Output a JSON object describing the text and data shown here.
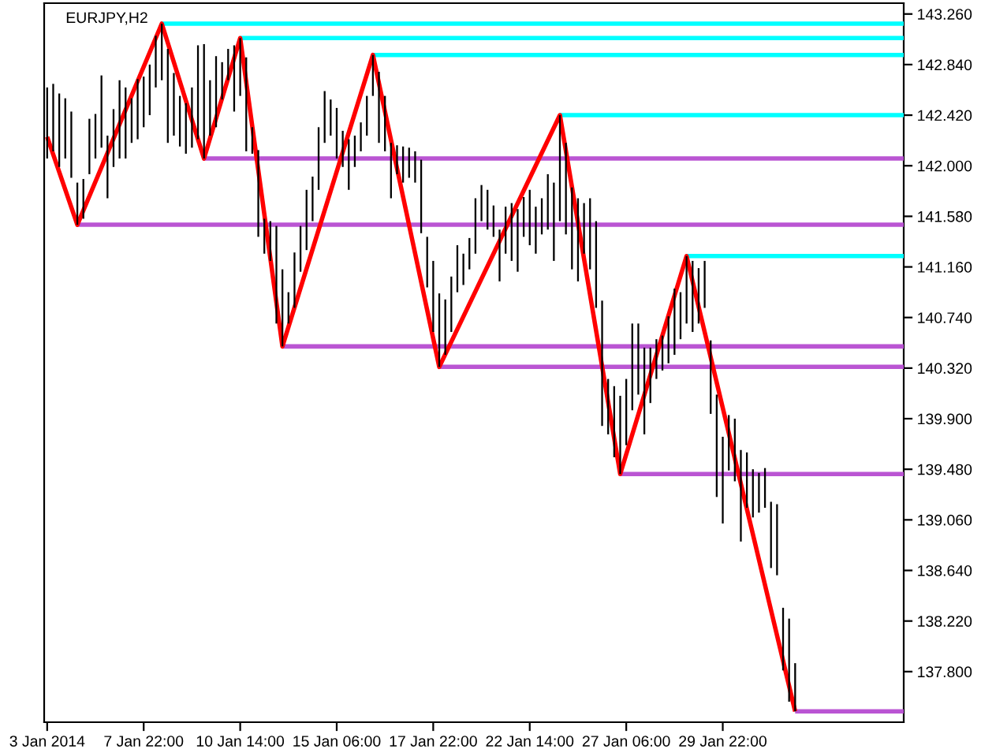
{
  "chart_data": {
    "type": "bar",
    "title": "EURJPY,H2",
    "categories": [
      "3 Jan 2014",
      null,
      null,
      null,
      null,
      null,
      null,
      null,
      null,
      null,
      null,
      null,
      null,
      null,
      null,
      null,
      "7 Jan 22:00",
      null,
      null,
      null,
      null,
      null,
      null,
      null,
      null,
      null,
      null,
      null,
      null,
      null,
      null,
      null,
      "10 Jan 14:00",
      null,
      null,
      null,
      null,
      null,
      null,
      null,
      null,
      null,
      null,
      null,
      null,
      null,
      null,
      null,
      "15 Jan 06:00",
      null,
      null,
      null,
      null,
      null,
      null,
      null,
      null,
      null,
      null,
      null,
      null,
      null,
      null,
      null,
      "17 Jan 22:00",
      null,
      null,
      null,
      null,
      null,
      null,
      null,
      null,
      null,
      null,
      null,
      null,
      null,
      null,
      null,
      "22 Jan 14:00",
      null,
      null,
      null,
      null,
      null,
      null,
      null,
      null,
      null,
      null,
      null,
      null,
      null,
      null,
      null,
      "27 Jan 06:00",
      null,
      null,
      null,
      null,
      null,
      null,
      null,
      null,
      null,
      null,
      null,
      null,
      null,
      null,
      null,
      "29 Jan 22:00",
      null,
      null,
      null,
      null,
      null,
      null,
      null,
      null,
      null,
      null,
      null,
      null,
      null,
      null,
      null,
      null,
      null,
      null,
      null,
      null,
      null,
      null,
      null,
      null,
      null,
      null,
      null,
      null,
      null,
      null
    ],
    "ylim": [
      137.38,
      143.35
    ],
    "yticks": [
      {
        "value": 143.26,
        "label": "143.260"
      },
      {
        "value": 142.84,
        "label": "142.840"
      },
      {
        "value": 142.42,
        "label": "142.420"
      },
      {
        "value": 142.0,
        "label": "142.000"
      },
      {
        "value": 141.58,
        "label": "141.580"
      },
      {
        "value": 141.16,
        "label": "141.160"
      },
      {
        "value": 140.74,
        "label": "140.740"
      },
      {
        "value": 140.32,
        "label": "140.320"
      },
      {
        "value": 139.9,
        "label": "139.900"
      },
      {
        "value": 139.48,
        "label": "139.480"
      },
      {
        "value": 139.06,
        "label": "139.060"
      },
      {
        "value": 138.64,
        "label": "138.640"
      },
      {
        "value": 138.22,
        "label": "138.220"
      },
      {
        "value": 137.8,
        "label": "137.800"
      }
    ],
    "series": [
      {
        "color": "#000000",
        "base": [
          142.06,
          142.12,
          141.99,
          142.06,
          141.9,
          141.51,
          141.56,
          141.93,
          142.06,
          142.15,
          141.73,
          141.99,
          142.06,
          142.06,
          142.19,
          142.22,
          142.32,
          142.42,
          142.65,
          142.71,
          142.19,
          142.25,
          142.16,
          142.1,
          142.15,
          142.22,
          142.06,
          142.25,
          142.32,
          142.55,
          142.71,
          142.45,
          142.58,
          142.12,
          142.1,
          141.41,
          141.27,
          141.21,
          140.69,
          140.5,
          140.69,
          140.82,
          141.12,
          141.3,
          141.54,
          141.8,
          142.19,
          142.25,
          142.06,
          141.99,
          141.8,
          141.99,
          142.12,
          142.25,
          142.58,
          142.19,
          142.12,
          141.73,
          141.93,
          141.86,
          141.9,
          141.86,
          141.44,
          140.99,
          140.62,
          140.33,
          140.43,
          140.62,
          140.95,
          141.01,
          141.14,
          141.27,
          141.54,
          141.47,
          141.41,
          141.04,
          141.27,
          141.21,
          141.12,
          141.41,
          141.34,
          141.27,
          141.43,
          141.47,
          141.21,
          141.54,
          141.43,
          141.14,
          141.04,
          141.27,
          141.14,
          140.82,
          139.84,
          139.77,
          139.58,
          139.44,
          139.68,
          139.97,
          140.1,
          139.77,
          140.03,
          140.23,
          140.3,
          140.36,
          140.43,
          140.56,
          140.69,
          140.62,
          140.69,
          140.82,
          139.94,
          139.25,
          139.03,
          139.47,
          139.38,
          138.88,
          139.16,
          139.08,
          139.12,
          139.16,
          138.66,
          138.6,
          137.81,
          137.55,
          137.47,
          null,
          null,
          null,
          null,
          null,
          null,
          null,
          null,
          null,
          null,
          null,
          null,
          null,
          null,
          null,
          null,
          null,
          null
        ],
        "values": [
          0.59,
          0.56,
          0.61,
          0.5,
          0.55,
          0.35,
          0.33,
          0.46,
          0.37,
          0.6,
          0.52,
          0.48,
          0.65,
          0.59,
          0.37,
          0.5,
          0.42,
          0.42,
          0.43,
          0.47,
          0.78,
          0.52,
          0.42,
          0.42,
          0.5,
          0.78,
          0.95,
          0.46,
          0.59,
          0.31,
          0.26,
          0.55,
          0.48,
          0.78,
          0.22,
          0.72,
          0.29,
          0.33,
          0.81,
          0.64,
          0.26,
          0.46,
          0.38,
          0.5,
          0.37,
          0.52,
          0.43,
          0.3,
          0.42,
          0.3,
          0.42,
          0.26,
          0.24,
          0.33,
          0.34,
          0.59,
          0.46,
          0.46,
          0.24,
          0.3,
          0.25,
          0.26,
          0.61,
          0.42,
          0.59,
          0.61,
          0.46,
          0.46,
          0.39,
          0.26,
          0.26,
          0.46,
          0.3,
          0.33,
          0.26,
          0.43,
          0.39,
          0.48,
          0.52,
          0.33,
          0.46,
          0.39,
          0.3,
          0.46,
          0.65,
          0.88,
          0.76,
          0.68,
          0.69,
          0.42,
          0.59,
          0.72,
          1.04,
          0.46,
          0.59,
          0.65,
          0.55,
          0.72,
          0.59,
          0.72,
          0.46,
          0.33,
          0.29,
          0.39,
          0.55,
          0.39,
          0.56,
          0.59,
          0.46,
          0.39,
          0.61,
          0.85,
          0.72,
          0.46,
          0.52,
          0.76,
          0.46,
          0.4,
          0.33,
          0.33,
          0.55,
          0.59,
          0.52,
          0.69,
          0.4,
          null,
          null,
          null,
          null,
          null,
          null,
          null,
          null,
          null,
          null,
          null,
          null,
          null,
          null,
          null,
          null,
          null,
          null
        ]
      },
      {
        "type": "line",
        "color": "#00ffff",
        "values": [
          null,
          null,
          null,
          null,
          null,
          null,
          null,
          null,
          null,
          null,
          null,
          null,
          null,
          null,
          null,
          null,
          null,
          null,
          null,
          143.18,
          143.18,
          143.18,
          143.18,
          143.18,
          143.18,
          143.18,
          143.18,
          143.18,
          143.18,
          143.18,
          143.18,
          143.18,
          143.18,
          143.18,
          143.18,
          143.18,
          143.18,
          143.18,
          143.18,
          143.18,
          143.18,
          143.18,
          143.18,
          143.18,
          143.18,
          143.18,
          143.18,
          143.18,
          143.18,
          143.18,
          143.18,
          143.18,
          143.18,
          143.18,
          143.18,
          143.18,
          143.18,
          143.18,
          143.18,
          143.18,
          143.18,
          143.18,
          143.18,
          143.18,
          143.18,
          143.18,
          143.18,
          143.18,
          143.18,
          143.18,
          143.18,
          143.18,
          143.18,
          143.18,
          143.18,
          143.18,
          143.18,
          143.18,
          143.18,
          143.18,
          143.18,
          143.18,
          143.18,
          143.18,
          143.18,
          143.18,
          143.18,
          143.18,
          143.18,
          143.18,
          143.18,
          143.18,
          143.18,
          143.18,
          143.18,
          143.18,
          143.18,
          143.18,
          143.18,
          143.18,
          143.18,
          143.18,
          143.18,
          143.18,
          143.18,
          143.18,
          143.18,
          143.18,
          143.18,
          143.18,
          143.18,
          143.18,
          143.18,
          143.18,
          143.18,
          143.18,
          143.18,
          143.18,
          143.18,
          143.18,
          143.18,
          143.18,
          143.18,
          143.18,
          143.18,
          143.18,
          143.18,
          143.18,
          143.18,
          143.18,
          143.18,
          143.18,
          143.18,
          143.18,
          143.18,
          143.18,
          143.18,
          143.18,
          143.18,
          143.18,
          143.18,
          143.18,
          143.18
        ]
      },
      {
        "type": "line",
        "color": "#00ffff",
        "values": [
          null,
          null,
          null,
          null,
          null,
          null,
          null,
          null,
          null,
          null,
          null,
          null,
          null,
          null,
          null,
          null,
          null,
          null,
          null,
          null,
          null,
          null,
          null,
          null,
          null,
          null,
          null,
          null,
          null,
          null,
          null,
          null,
          143.06,
          143.06,
          143.06,
          143.06,
          143.06,
          143.06,
          143.06,
          143.06,
          143.06,
          143.06,
          143.06,
          143.06,
          143.06,
          143.06,
          143.06,
          143.06,
          143.06,
          143.06,
          143.06,
          143.06,
          143.06,
          143.06,
          143.06,
          143.06,
          143.06,
          143.06,
          143.06,
          143.06,
          143.06,
          143.06,
          143.06,
          143.06,
          143.06,
          143.06,
          143.06,
          143.06,
          143.06,
          143.06,
          143.06,
          143.06,
          143.06,
          143.06,
          143.06,
          143.06,
          143.06,
          143.06,
          143.06,
          143.06,
          143.06,
          143.06,
          143.06,
          143.06,
          143.06,
          143.06,
          143.06,
          143.06,
          143.06,
          143.06,
          143.06,
          143.06,
          143.06,
          143.06,
          143.06,
          143.06,
          143.06,
          143.06,
          143.06,
          143.06,
          143.06,
          143.06,
          143.06,
          143.06,
          143.06,
          143.06,
          143.06,
          143.06,
          143.06,
          143.06,
          143.06,
          143.06,
          143.06,
          143.06,
          143.06,
          143.06,
          143.06,
          143.06,
          143.06,
          143.06,
          143.06,
          143.06,
          143.06,
          143.06,
          143.06,
          143.06,
          143.06,
          143.06,
          143.06,
          143.06,
          143.06,
          143.06,
          143.06,
          143.06,
          143.06,
          143.06,
          143.06,
          143.06,
          143.06,
          143.06,
          143.06,
          143.06,
          143.06
        ]
      },
      {
        "type": "line",
        "color": "#00ffff",
        "values": [
          null,
          null,
          null,
          null,
          null,
          null,
          null,
          null,
          null,
          null,
          null,
          null,
          null,
          null,
          null,
          null,
          null,
          null,
          null,
          null,
          null,
          null,
          null,
          null,
          null,
          null,
          null,
          null,
          null,
          null,
          null,
          null,
          null,
          null,
          null,
          null,
          null,
          null,
          null,
          null,
          null,
          null,
          null,
          null,
          null,
          null,
          null,
          null,
          null,
          null,
          null,
          null,
          null,
          null,
          142.92,
          142.92,
          142.92,
          142.92,
          142.92,
          142.92,
          142.92,
          142.92,
          142.92,
          142.92,
          142.92,
          142.92,
          142.92,
          142.92,
          142.92,
          142.92,
          142.92,
          142.92,
          142.92,
          142.92,
          142.92,
          142.92,
          142.92,
          142.92,
          142.92,
          142.92,
          142.92,
          142.92,
          142.92,
          142.92,
          142.92,
          142.92,
          142.92,
          142.92,
          142.92,
          142.92,
          142.92,
          142.92,
          142.92,
          142.92,
          142.92,
          142.92,
          142.92,
          142.92,
          142.92,
          142.92,
          142.92,
          142.92,
          142.92,
          142.92,
          142.92,
          142.92,
          142.92,
          142.92,
          142.92,
          142.92,
          142.92,
          142.92,
          142.92,
          142.92,
          142.92,
          142.92,
          142.92,
          142.92,
          142.92,
          142.92,
          142.92,
          142.92,
          142.92,
          142.92,
          142.92,
          142.92,
          142.92,
          142.92,
          142.92,
          142.92,
          142.92,
          142.92,
          142.92,
          142.92,
          142.92,
          142.92,
          142.92,
          142.92,
          142.92,
          142.92,
          142.92,
          142.92,
          142.92
        ]
      },
      {
        "type": "line",
        "color": "#00ffff",
        "values": [
          null,
          null,
          null,
          null,
          null,
          null,
          null,
          null,
          null,
          null,
          null,
          null,
          null,
          null,
          null,
          null,
          null,
          null,
          null,
          null,
          null,
          null,
          null,
          null,
          null,
          null,
          null,
          null,
          null,
          null,
          null,
          null,
          null,
          null,
          null,
          null,
          null,
          null,
          null,
          null,
          null,
          null,
          null,
          null,
          null,
          null,
          null,
          null,
          null,
          null,
          null,
          null,
          null,
          null,
          null,
          null,
          null,
          null,
          null,
          null,
          null,
          null,
          null,
          null,
          null,
          null,
          null,
          null,
          null,
          null,
          null,
          null,
          null,
          null,
          null,
          null,
          null,
          null,
          null,
          null,
          null,
          null,
          null,
          null,
          null,
          142.42,
          142.42,
          142.42,
          142.42,
          142.42,
          142.42,
          142.42,
          142.42,
          142.42,
          142.42,
          142.42,
          142.42,
          142.42,
          142.42,
          142.42,
          142.42,
          142.42,
          142.42,
          142.42,
          142.42,
          142.42,
          142.42,
          142.42,
          142.42,
          142.42,
          142.42,
          142.42,
          142.42,
          142.42,
          142.42,
          142.42,
          142.42,
          142.42,
          142.42,
          142.42,
          142.42,
          142.42,
          142.42,
          142.42,
          142.42,
          142.42,
          142.42,
          142.42,
          142.42,
          142.42,
          142.42,
          142.42,
          142.42,
          142.42,
          142.42,
          142.42,
          142.42,
          142.42,
          142.42,
          142.42,
          142.42,
          142.42,
          142.42
        ]
      },
      {
        "type": "line",
        "color": "#00ffff",
        "values": [
          null,
          null,
          null,
          null,
          null,
          null,
          null,
          null,
          null,
          null,
          null,
          null,
          null,
          null,
          null,
          null,
          null,
          null,
          null,
          null,
          null,
          null,
          null,
          null,
          null,
          null,
          null,
          null,
          null,
          null,
          null,
          null,
          null,
          null,
          null,
          null,
          null,
          null,
          null,
          null,
          null,
          null,
          null,
          null,
          null,
          null,
          null,
          null,
          null,
          null,
          null,
          null,
          null,
          null,
          null,
          null,
          null,
          null,
          null,
          null,
          null,
          null,
          null,
          null,
          null,
          null,
          null,
          null,
          null,
          null,
          null,
          null,
          null,
          null,
          null,
          null,
          null,
          null,
          null,
          null,
          null,
          null,
          null,
          null,
          null,
          null,
          null,
          null,
          null,
          null,
          null,
          null,
          null,
          null,
          null,
          null,
          null,
          null,
          null,
          null,
          null,
          null,
          null,
          null,
          null,
          null,
          141.25,
          141.25,
          141.25,
          141.25,
          141.25,
          141.25,
          141.25,
          141.25,
          141.25,
          141.25,
          141.25,
          141.25,
          141.25,
          141.25,
          141.25,
          141.25,
          141.25,
          141.25,
          141.25,
          141.25,
          141.25,
          141.25,
          141.25,
          141.25,
          141.25,
          141.25,
          141.25,
          141.25,
          141.25,
          141.25,
          141.25,
          141.25,
          141.25,
          141.25,
          141.25,
          141.25,
          141.25
        ]
      },
      {
        "type": "line",
        "color": "#ba55d3",
        "values": [
          null,
          null,
          null,
          null,
          null,
          141.51,
          141.51,
          141.51,
          141.51,
          141.51,
          141.51,
          141.51,
          141.51,
          141.51,
          141.51,
          141.51,
          141.51,
          141.51,
          141.51,
          141.51,
          141.51,
          141.51,
          141.51,
          141.51,
          141.51,
          141.51,
          141.51,
          141.51,
          141.51,
          141.51,
          141.51,
          141.51,
          141.51,
          141.51,
          141.51,
          141.51,
          141.51,
          141.51,
          141.51,
          141.51,
          141.51,
          141.51,
          141.51,
          141.51,
          141.51,
          141.51,
          141.51,
          141.51,
          141.51,
          141.51,
          141.51,
          141.51,
          141.51,
          141.51,
          141.51,
          141.51,
          141.51,
          141.51,
          141.51,
          141.51,
          141.51,
          141.51,
          141.51,
          141.51,
          141.51,
          141.51,
          141.51,
          141.51,
          141.51,
          141.51,
          141.51,
          141.51,
          141.51,
          141.51,
          141.51,
          141.51,
          141.51,
          141.51,
          141.51,
          141.51,
          141.51,
          141.51,
          141.51,
          141.51,
          141.51,
          141.51,
          141.51,
          141.51,
          141.51,
          141.51,
          141.51,
          141.51,
          141.51,
          141.51,
          141.51,
          141.51,
          141.51,
          141.51,
          141.51,
          141.51,
          141.51,
          141.51,
          141.51,
          141.51,
          141.51,
          141.51,
          141.51,
          141.51,
          141.51,
          141.51,
          141.51,
          141.51,
          141.51,
          141.51,
          141.51,
          141.51,
          141.51,
          141.51,
          141.51,
          141.51,
          141.51,
          141.51,
          141.51,
          141.51,
          141.51,
          141.51,
          141.51,
          141.51,
          141.51,
          141.51,
          141.51,
          141.51,
          141.51,
          141.51,
          141.51,
          141.51,
          141.51,
          141.51,
          141.51,
          141.51,
          141.51,
          141.51,
          141.51
        ]
      },
      {
        "type": "line",
        "color": "#ba55d3",
        "values": [
          null,
          null,
          null,
          null,
          null,
          null,
          null,
          null,
          null,
          null,
          null,
          null,
          null,
          null,
          null,
          null,
          null,
          null,
          null,
          null,
          null,
          null,
          null,
          null,
          null,
          null,
          142.06,
          142.06,
          142.06,
          142.06,
          142.06,
          142.06,
          142.06,
          142.06,
          142.06,
          142.06,
          142.06,
          142.06,
          142.06,
          142.06,
          142.06,
          142.06,
          142.06,
          142.06,
          142.06,
          142.06,
          142.06,
          142.06,
          142.06,
          142.06,
          142.06,
          142.06,
          142.06,
          142.06,
          142.06,
          142.06,
          142.06,
          142.06,
          142.06,
          142.06,
          142.06,
          142.06,
          142.06,
          142.06,
          142.06,
          142.06,
          142.06,
          142.06,
          142.06,
          142.06,
          142.06,
          142.06,
          142.06,
          142.06,
          142.06,
          142.06,
          142.06,
          142.06,
          142.06,
          142.06,
          142.06,
          142.06,
          142.06,
          142.06,
          142.06,
          142.06,
          142.06,
          142.06,
          142.06,
          142.06,
          142.06,
          142.06,
          142.06,
          142.06,
          142.06,
          142.06,
          142.06,
          142.06,
          142.06,
          142.06,
          142.06,
          142.06,
          142.06,
          142.06,
          142.06,
          142.06,
          142.06,
          142.06,
          142.06,
          142.06,
          142.06,
          142.06,
          142.06,
          142.06,
          142.06,
          142.06,
          142.06,
          142.06,
          142.06,
          142.06,
          142.06,
          142.06,
          142.06,
          142.06,
          142.06,
          142.06,
          142.06,
          142.06,
          142.06,
          142.06,
          142.06,
          142.06,
          142.06,
          142.06,
          142.06,
          142.06,
          142.06,
          142.06,
          142.06,
          142.06,
          142.06,
          142.06,
          142.06
        ]
      },
      {
        "type": "line",
        "color": "#ba55d3",
        "values": [
          null,
          null,
          null,
          null,
          null,
          null,
          null,
          null,
          null,
          null,
          null,
          null,
          null,
          null,
          null,
          null,
          null,
          null,
          null,
          null,
          null,
          null,
          null,
          null,
          null,
          null,
          null,
          null,
          null,
          null,
          null,
          null,
          null,
          null,
          null,
          null,
          null,
          null,
          null,
          140.5,
          140.5,
          140.5,
          140.5,
          140.5,
          140.5,
          140.5,
          140.5,
          140.5,
          140.5,
          140.5,
          140.5,
          140.5,
          140.5,
          140.5,
          140.5,
          140.5,
          140.5,
          140.5,
          140.5,
          140.5,
          140.5,
          140.5,
          140.5,
          140.5,
          140.5,
          140.5,
          140.5,
          140.5,
          140.5,
          140.5,
          140.5,
          140.5,
          140.5,
          140.5,
          140.5,
          140.5,
          140.5,
          140.5,
          140.5,
          140.5,
          140.5,
          140.5,
          140.5,
          140.5,
          140.5,
          140.5,
          140.5,
          140.5,
          140.5,
          140.5,
          140.5,
          140.5,
          140.5,
          140.5,
          140.5,
          140.5,
          140.5,
          140.5,
          140.5,
          140.5,
          140.5,
          140.5,
          140.5,
          140.5,
          140.5,
          140.5,
          140.5,
          140.5,
          140.5,
          140.5,
          140.5,
          140.5,
          140.5,
          140.5,
          140.5,
          140.5,
          140.5,
          140.5,
          140.5,
          140.5,
          140.5,
          140.5,
          140.5,
          140.5,
          140.5,
          140.5,
          140.5,
          140.5,
          140.5,
          140.5,
          140.5,
          140.5,
          140.5,
          140.5,
          140.5,
          140.5,
          140.5,
          140.5,
          140.5,
          140.5,
          140.5,
          140.5,
          140.5
        ]
      },
      {
        "type": "line",
        "color": "#ba55d3",
        "values": [
          null,
          null,
          null,
          null,
          null,
          null,
          null,
          null,
          null,
          null,
          null,
          null,
          null,
          null,
          null,
          null,
          null,
          null,
          null,
          null,
          null,
          null,
          null,
          null,
          null,
          null,
          null,
          null,
          null,
          null,
          null,
          null,
          null,
          null,
          null,
          null,
          null,
          null,
          null,
          null,
          null,
          null,
          null,
          null,
          null,
          null,
          null,
          null,
          null,
          null,
          null,
          null,
          null,
          null,
          null,
          null,
          null,
          null,
          null,
          null,
          null,
          null,
          null,
          null,
          null,
          140.33,
          140.33,
          140.33,
          140.33,
          140.33,
          140.33,
          140.33,
          140.33,
          140.33,
          140.33,
          140.33,
          140.33,
          140.33,
          140.33,
          140.33,
          140.33,
          140.33,
          140.33,
          140.33,
          140.33,
          140.33,
          140.33,
          140.33,
          140.33,
          140.33,
          140.33,
          140.33,
          140.33,
          140.33,
          140.33,
          140.33,
          140.33,
          140.33,
          140.33,
          140.33,
          140.33,
          140.33,
          140.33,
          140.33,
          140.33,
          140.33,
          140.33,
          140.33,
          140.33,
          140.33,
          140.33,
          140.33,
          140.33,
          140.33,
          140.33,
          140.33,
          140.33,
          140.33,
          140.33,
          140.33,
          140.33,
          140.33,
          140.33,
          140.33,
          140.33,
          140.33,
          140.33,
          140.33,
          140.33,
          140.33,
          140.33,
          140.33,
          140.33,
          140.33,
          140.33,
          140.33,
          140.33,
          140.33,
          140.33,
          140.33,
          140.33,
          140.33,
          140.33
        ]
      },
      {
        "type": "line",
        "color": "#ba55d3",
        "values": [
          null,
          null,
          null,
          null,
          null,
          null,
          null,
          null,
          null,
          null,
          null,
          null,
          null,
          null,
          null,
          null,
          null,
          null,
          null,
          null,
          null,
          null,
          null,
          null,
          null,
          null,
          null,
          null,
          null,
          null,
          null,
          null,
          null,
          null,
          null,
          null,
          null,
          null,
          null,
          null,
          null,
          null,
          null,
          null,
          null,
          null,
          null,
          null,
          null,
          null,
          null,
          null,
          null,
          null,
          null,
          null,
          null,
          null,
          null,
          null,
          null,
          null,
          null,
          null,
          null,
          null,
          null,
          null,
          null,
          null,
          null,
          null,
          null,
          null,
          null,
          null,
          null,
          null,
          null,
          null,
          null,
          null,
          null,
          null,
          null,
          null,
          null,
          null,
          null,
          null,
          null,
          null,
          null,
          null,
          null,
          139.44,
          139.44,
          139.44,
          139.44,
          139.44,
          139.44,
          139.44,
          139.44,
          139.44,
          139.44,
          139.44,
          139.44,
          139.44,
          139.44,
          139.44,
          139.44,
          139.44,
          139.44,
          139.44,
          139.44,
          139.44,
          139.44,
          139.44,
          139.44,
          139.44,
          139.44,
          139.44,
          139.44,
          139.44,
          139.44,
          139.44,
          139.44,
          139.44,
          139.44,
          139.44,
          139.44,
          139.44,
          139.44,
          139.44,
          139.44,
          139.44,
          139.44,
          139.44,
          139.44,
          139.44,
          139.44,
          139.44,
          139.44
        ]
      },
      {
        "type": "line",
        "color": "#ba55d3",
        "values": [
          null,
          null,
          null,
          null,
          null,
          null,
          null,
          null,
          null,
          null,
          null,
          null,
          null,
          null,
          null,
          null,
          null,
          null,
          null,
          null,
          null,
          null,
          null,
          null,
          null,
          null,
          null,
          null,
          null,
          null,
          null,
          null,
          null,
          null,
          null,
          null,
          null,
          null,
          null,
          null,
          null,
          null,
          null,
          null,
          null,
          null,
          null,
          null,
          null,
          null,
          null,
          null,
          null,
          null,
          null,
          null,
          null,
          null,
          null,
          null,
          null,
          null,
          null,
          null,
          null,
          null,
          null,
          null,
          null,
          null,
          null,
          null,
          null,
          null,
          null,
          null,
          null,
          null,
          null,
          null,
          null,
          null,
          null,
          null,
          null,
          null,
          null,
          null,
          null,
          null,
          null,
          null,
          null,
          null,
          null,
          null,
          null,
          null,
          null,
          null,
          null,
          null,
          null,
          null,
          null,
          null,
          null,
          null,
          null,
          null,
          null,
          null,
          null,
          null,
          null,
          null,
          null,
          null,
          null,
          null,
          null,
          null,
          null,
          null,
          137.47,
          137.47,
          137.47,
          137.47,
          137.47,
          137.47,
          137.47,
          137.47,
          137.47,
          137.47,
          137.47,
          137.47,
          137.47,
          137.47,
          137.47,
          137.47,
          137.47,
          137.47,
          137.47
        ]
      },
      {
        "type": "line",
        "color": "#ff0000",
        "values": [
          142.24,
          null,
          null,
          null,
          null,
          141.51,
          null,
          null,
          null,
          null,
          null,
          null,
          null,
          null,
          null,
          null,
          null,
          null,
          null,
          143.18,
          null,
          null,
          null,
          null,
          null,
          null,
          142.06,
          null,
          null,
          null,
          null,
          null,
          143.06,
          null,
          null,
          null,
          null,
          null,
          null,
          140.5,
          null,
          null,
          null,
          null,
          null,
          null,
          null,
          null,
          null,
          null,
          null,
          null,
          null,
          null,
          142.92,
          null,
          null,
          null,
          null,
          null,
          null,
          null,
          null,
          null,
          null,
          140.33,
          null,
          null,
          null,
          null,
          null,
          null,
          null,
          null,
          null,
          null,
          null,
          null,
          null,
          null,
          null,
          null,
          null,
          null,
          null,
          142.42,
          null,
          null,
          null,
          null,
          null,
          null,
          null,
          null,
          null,
          139.44,
          null,
          null,
          null,
          null,
          null,
          null,
          null,
          null,
          null,
          null,
          141.25,
          null,
          null,
          null,
          null,
          null,
          null,
          null,
          null,
          null,
          null,
          null,
          null,
          null,
          null,
          null,
          null,
          null,
          137.47,
          null,
          null,
          null,
          null,
          null,
          null,
          null,
          null,
          null,
          null,
          null,
          null,
          null,
          null,
          null,
          null,
          null,
          null
        ]
      }
    ]
  }
}
